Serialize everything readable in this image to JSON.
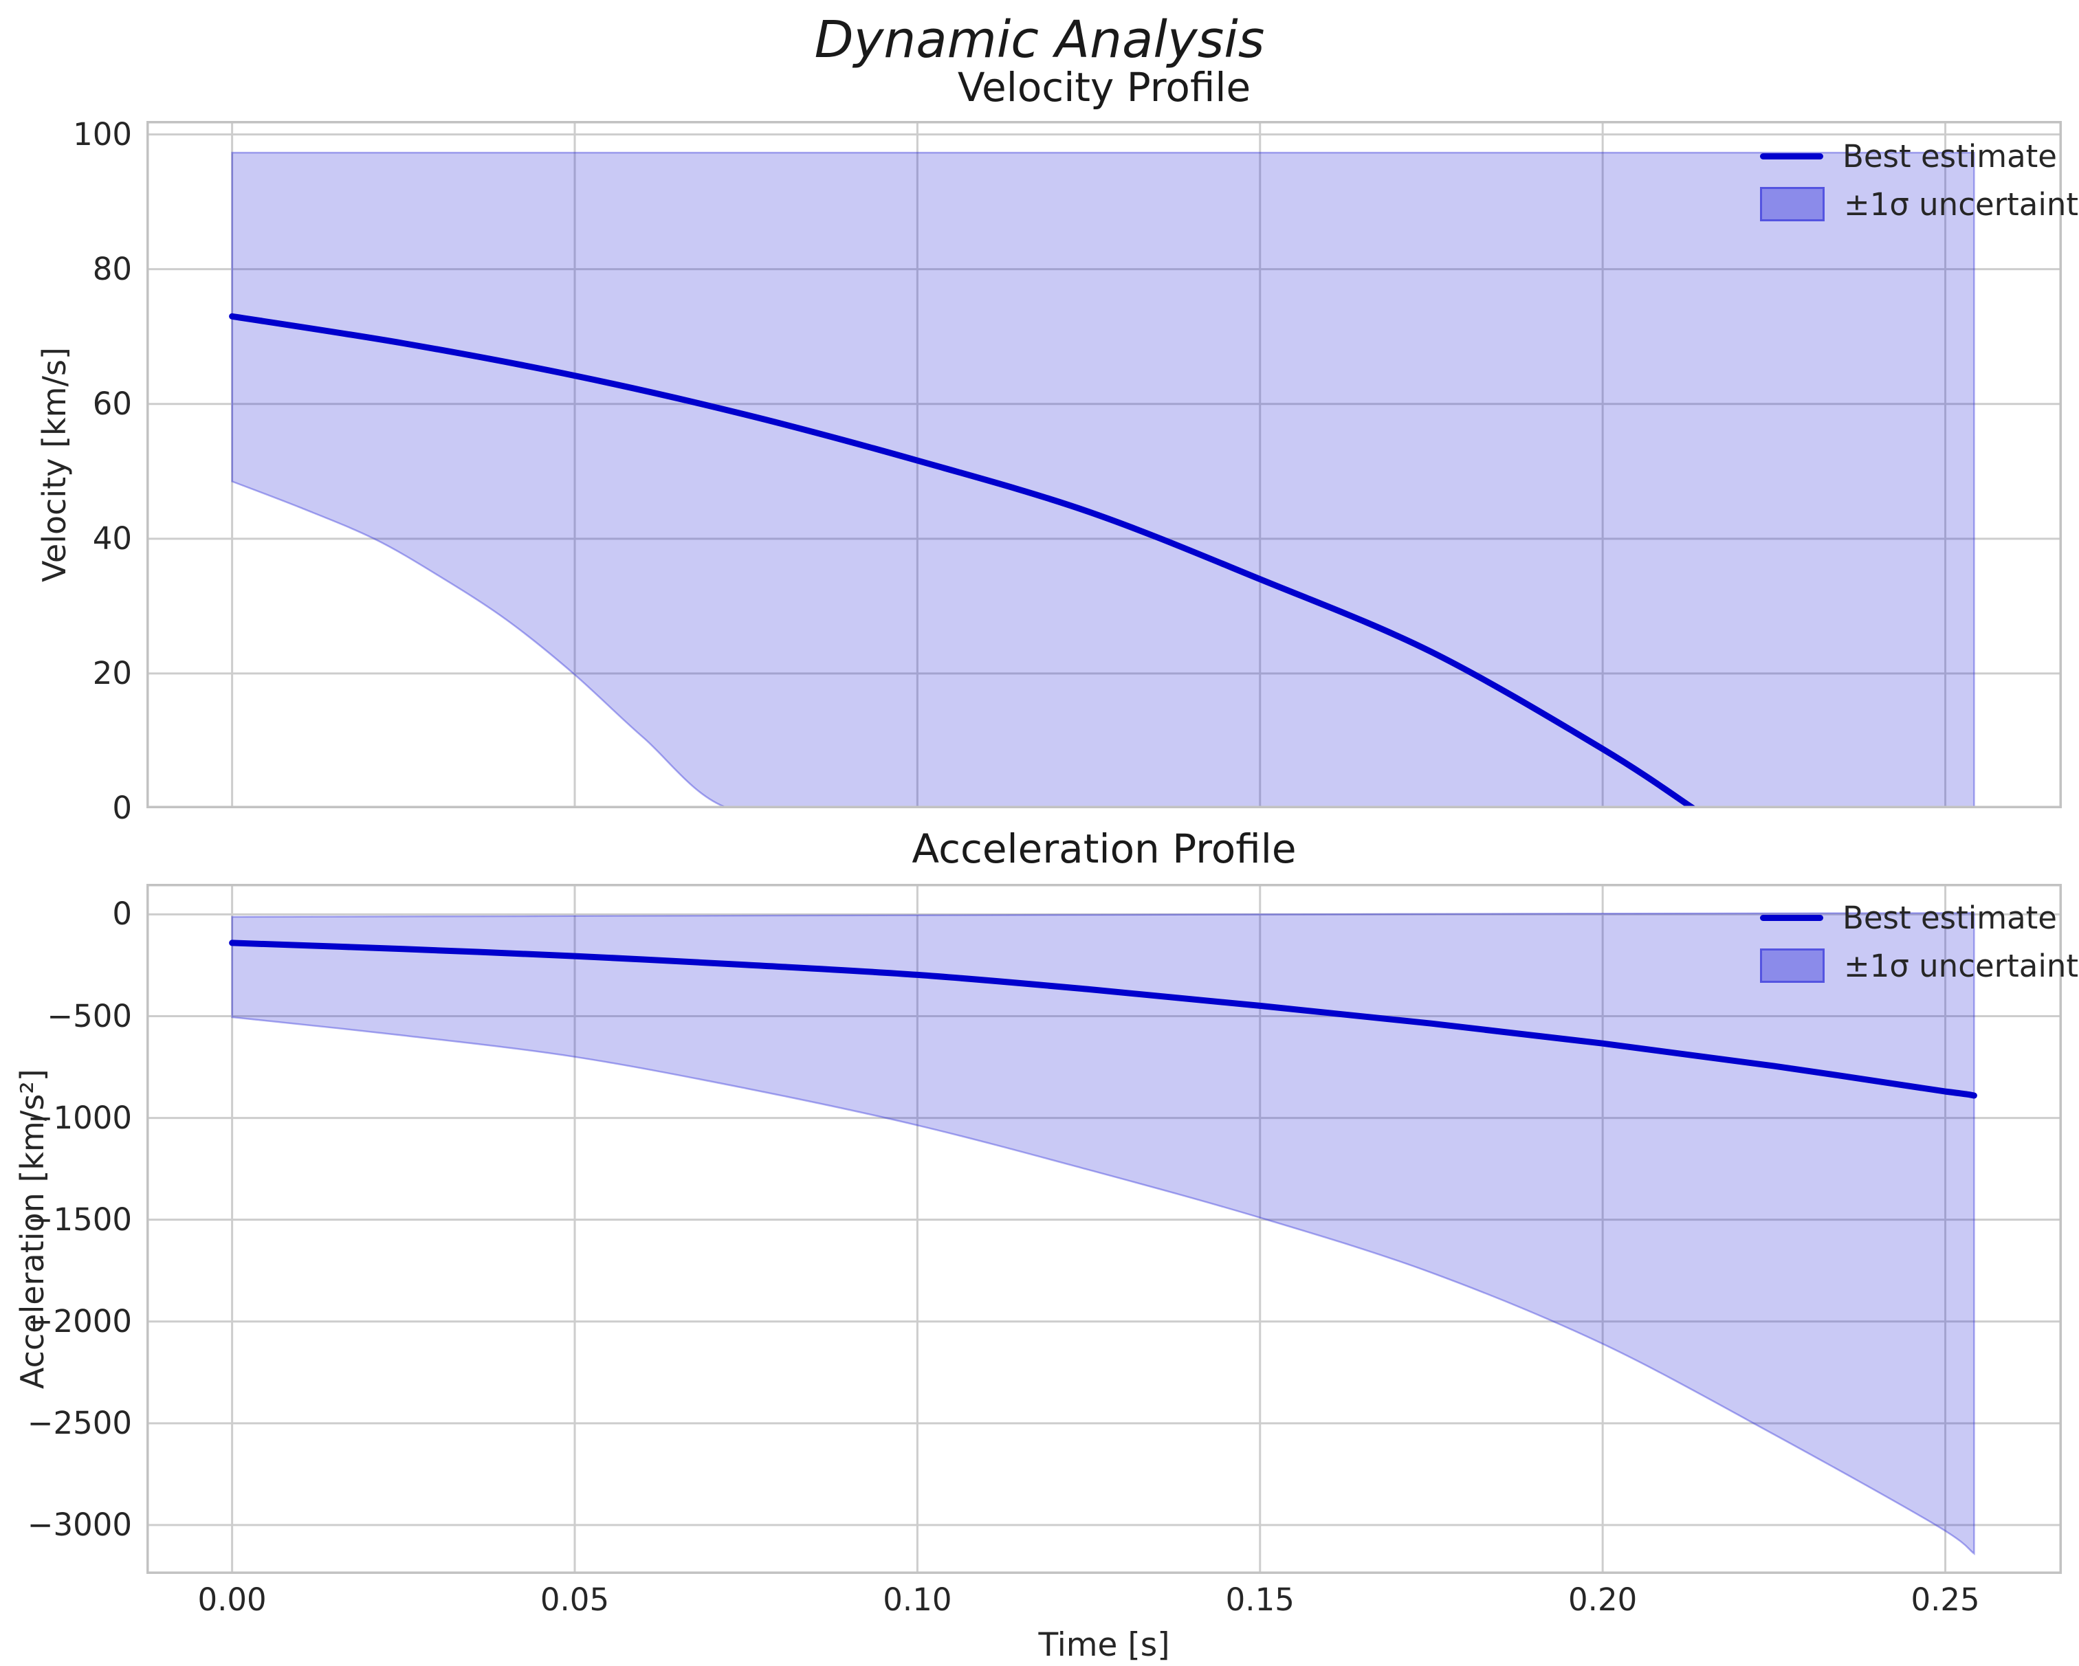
{
  "figure": {
    "suptitle": "Dynamic Analysis",
    "xlabel": "Time [s]"
  },
  "colors": {
    "line": "#0000cd",
    "band_fill": "rgba(40,40,215,0.25)",
    "band_edge": "rgba(40,40,215,0.38)",
    "legend_patch_fill": "rgba(40,40,215,0.38)",
    "legend_patch_edge": "rgba(40,40,215,0.55)",
    "grid": "#cdcdcd",
    "spine": "#c2c2c2",
    "text": "#262626"
  },
  "chart_data": [
    {
      "id": "velocity",
      "type": "line",
      "title": "Velocity Profile",
      "ylabel": "Velocity [km/s]",
      "xlabel": "",
      "xlim": [
        -0.0125,
        0.267
      ],
      "ylim": [
        0,
        102
      ],
      "grid": true,
      "legend_position": "upper right",
      "legend": {
        "line": "Best estimate",
        "band": "±1σ uncertainty"
      },
      "xticks": [
        0,
        0.05,
        0.1,
        0.15,
        0.2,
        0.25
      ],
      "xtick_labels": [],
      "yticks": [
        0,
        20,
        40,
        60,
        80,
        100
      ],
      "ytick_labels": [
        "0",
        "20",
        "40",
        "60",
        "80",
        "100"
      ],
      "series": [
        {
          "name": "Best estimate",
          "role": "line",
          "x": [
            0,
            0.025,
            0.05,
            0.075,
            0.1,
            0.125,
            0.15,
            0.175,
            0.2,
            0.2132
          ],
          "y": [
            73,
            69,
            64.2,
            58.4,
            51.6,
            44,
            34,
            23.2,
            8.8,
            0
          ]
        },
        {
          "name": "+1σ upper bound",
          "role": "band-upper",
          "x": [
            0,
            0.2542
          ],
          "y": [
            97.3,
            97.3
          ]
        },
        {
          "name": "−1σ lower bound",
          "role": "band-lower",
          "x": [
            0,
            0.01,
            0.0207,
            0.03,
            0.04,
            0.0498,
            0.06,
            0.0724,
            0.09,
            0.2542
          ],
          "y": [
            48.5,
            44.6,
            40,
            34.6,
            28,
            20,
            10.5,
            0,
            0,
            0
          ]
        }
      ]
    },
    {
      "id": "acceleration",
      "type": "line",
      "title": "Acceleration Profile",
      "ylabel": "Acceleration [km/s²]",
      "xlabel": "Time [s]",
      "xlim": [
        -0.0125,
        0.267
      ],
      "ylim": [
        -3240,
        150
      ],
      "grid": true,
      "legend_position": "upper right",
      "legend": {
        "line": "Best estimate",
        "band": "±1σ uncertainty"
      },
      "xticks": [
        0,
        0.05,
        0.1,
        0.15,
        0.2,
        0.25
      ],
      "xtick_labels": [
        "0.00",
        "0.05",
        "0.10",
        "0.15",
        "0.20",
        "0.25"
      ],
      "yticks": [
        0,
        -500,
        -1000,
        -1500,
        -2000,
        -2500,
        -3000
      ],
      "ytick_labels": [
        "0",
        "−500",
        "−1000",
        "−1500",
        "−2000",
        "−2500",
        "−3000"
      ],
      "series": [
        {
          "name": "Best estimate",
          "role": "line",
          "x": [
            0,
            0.025,
            0.05,
            0.075,
            0.1,
            0.125,
            0.15,
            0.175,
            0.2,
            0.225,
            0.25,
            0.2542
          ],
          "y": [
            -140,
            -170,
            -205,
            -248,
            -297,
            -368,
            -449,
            -536,
            -634,
            -745,
            -870,
            -890
          ]
        },
        {
          "name": "+1σ upper bound",
          "role": "band-upper",
          "x": [
            0,
            0.05,
            0.1,
            0.15,
            0.2,
            0.2542
          ],
          "y": [
            -12,
            -8,
            -4,
            0,
            4,
            7
          ]
        },
        {
          "name": "−1σ lower bound",
          "role": "band-lower",
          "x": [
            0,
            0.025,
            0.05,
            0.075,
            0.1,
            0.125,
            0.15,
            0.175,
            0.2,
            0.225,
            0.2486,
            0.2542
          ],
          "y": [
            -505,
            -595,
            -700,
            -855,
            -1036,
            -1255,
            -1490,
            -1760,
            -2110,
            -2555,
            -3000,
            -3140
          ]
        }
      ]
    }
  ]
}
